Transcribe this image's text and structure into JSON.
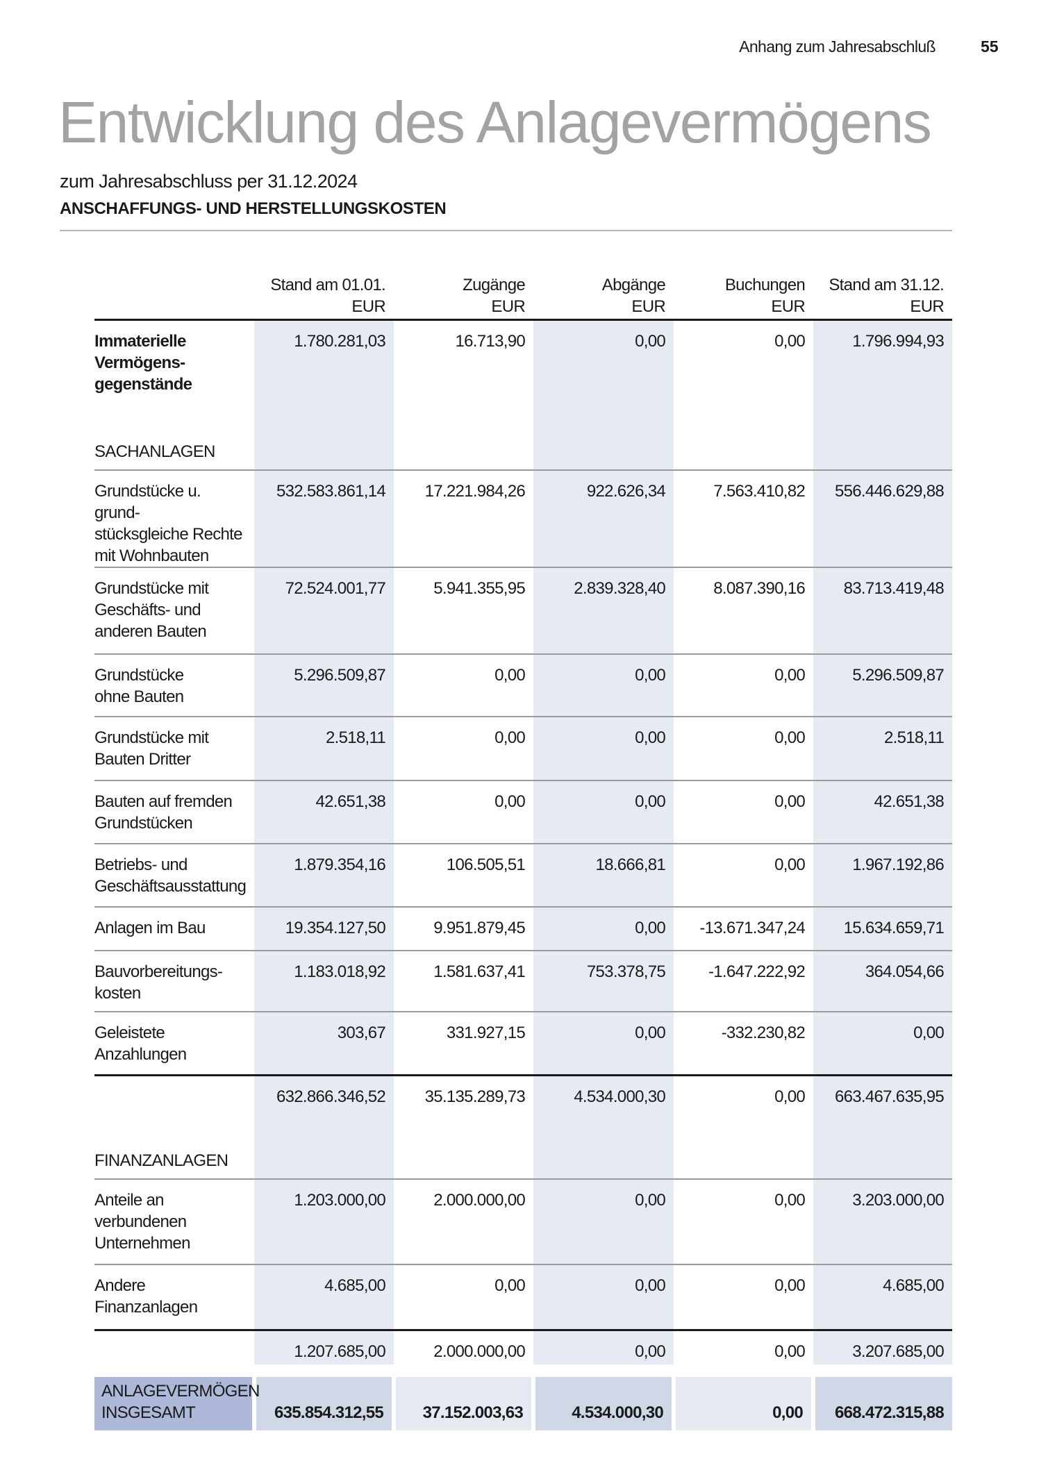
{
  "header": {
    "running_title": "Anhang zum Jahresabschluß",
    "page_number": "55"
  },
  "title": "Entwicklung des Anlagevermögens",
  "subtitle": "zum Jahresabschluss per 31.12.2024",
  "section_heading": "ANSCHAFFUNGS- UND HERSTELLUNGSKOSTEN",
  "columns": [
    {
      "label": "Stand am 01.01.",
      "unit": "EUR"
    },
    {
      "label": "Zugänge",
      "unit": "EUR"
    },
    {
      "label": "Abgänge",
      "unit": "EUR"
    },
    {
      "label": "Buchungen",
      "unit": "EUR"
    },
    {
      "label": "Stand am 31.12.",
      "unit": "EUR"
    }
  ],
  "rows": [
    {
      "type": "item",
      "bold": true,
      "label": "Immaterielle\nVermögens-\ngegenstände",
      "values": [
        "1.780.281,03",
        "16.713,90",
        "0,00",
        "0,00",
        "1.796.994,93"
      ],
      "height": 143,
      "border": "thick"
    },
    {
      "type": "section",
      "label": "SACHANLAGEN",
      "height": 73
    },
    {
      "type": "item",
      "label": "Grundstücke u. grund-\nstücksgleiche Rechte\nmit Wohnbauten",
      "values": [
        "532.583.861,14",
        "17.221.984,26",
        "922.626,34",
        "7.563.410,82",
        "556.446.629,88"
      ],
      "height": 120,
      "border": "gray"
    },
    {
      "type": "item",
      "label": "Grundstücke mit\nGeschäfts- und\nanderen Bauten",
      "values": [
        "72.524.001,77",
        "5.941.355,95",
        "2.839.328,40",
        "8.087.390,16",
        "83.713.419,48"
      ],
      "height": 125,
      "border": "gray"
    },
    {
      "type": "item",
      "label": "Grundstücke\nohne Bauten",
      "values": [
        "5.296.509,87",
        "0,00",
        "0,00",
        "0,00",
        "5.296.509,87"
      ],
      "height": 90,
      "border": "gray"
    },
    {
      "type": "item",
      "label": "Grundstücke mit\nBauten Dritter",
      "values": [
        "2.518,11",
        "0,00",
        "0,00",
        "0,00",
        "2.518,11"
      ],
      "height": 92,
      "border": "gray"
    },
    {
      "type": "item",
      "label": "Bauten auf fremden\nGrundstücken",
      "values": [
        "42.651,38",
        "0,00",
        "0,00",
        "0,00",
        "42.651,38"
      ],
      "height": 91,
      "border": "gray"
    },
    {
      "type": "item",
      "label": "Betriebs- und\nGeschäftsausstattung",
      "values": [
        "1.879.354,16",
        "106.505,51",
        "18.666,81",
        "0,00",
        "1.967.192,86"
      ],
      "height": 91,
      "border": "gray"
    },
    {
      "type": "item",
      "label": "Anlagen im Bau",
      "values": [
        "19.354.127,50",
        "9.951.879,45",
        "0,00",
        "-13.671.347,24",
        "15.634.659,71"
      ],
      "height": 63,
      "border": "gray"
    },
    {
      "type": "item",
      "label": "Bauvorbereitungs-\nkosten",
      "values": [
        "1.183.018,92",
        "1.581.637,41",
        "753.378,75",
        "-1.647.222,92",
        "364.054,66"
      ],
      "height": 88,
      "border": "gray"
    },
    {
      "type": "item",
      "label": "Geleistete\nAnzahlungen",
      "values": [
        "303,67",
        "331.927,15",
        "0,00",
        "-332.230,82",
        "0,00"
      ],
      "height": 92,
      "border": "gray"
    },
    {
      "type": "item",
      "label": "",
      "values": [
        "632.866.346,52",
        "35.135.289,73",
        "4.534.000,30",
        "0,00",
        "663.467.635,95"
      ],
      "height": 95,
      "border": "thick"
    },
    {
      "type": "section",
      "label": "FINANZANLAGEN",
      "height": 54
    },
    {
      "type": "item",
      "label": "Anteile an\nverbundenen\nUnternehmen",
      "values": [
        "1.203.000,00",
        "2.000.000,00",
        "0,00",
        "0,00",
        "3.203.000,00"
      ],
      "height": 123,
      "border": "gray"
    },
    {
      "type": "item",
      "label": "Andere\nFinanzanlagen",
      "values": [
        "4.685,00",
        "0,00",
        "0,00",
        "0,00",
        "4.685,00"
      ],
      "height": 95,
      "border": "gray"
    },
    {
      "type": "item",
      "label": "",
      "values": [
        "1.207.685,00",
        "2.000.000,00",
        "0,00",
        "0,00",
        "3.207.685,00"
      ],
      "height": 58,
      "border": "thick"
    }
  ],
  "total": {
    "label": "ANLAGEVERMÖGEN\nINSGESAMT",
    "values": [
      "635.854.312,55",
      "37.152.003,63",
      "4.534.000,30",
      "0,00",
      "668.472.315,88"
    ]
  },
  "colors": {
    "shade_light": "#e6eaf3",
    "shade_dark": "#d0d7e6",
    "total_label": "#aeb8d8",
    "title_gray": "#a3a3a3"
  }
}
